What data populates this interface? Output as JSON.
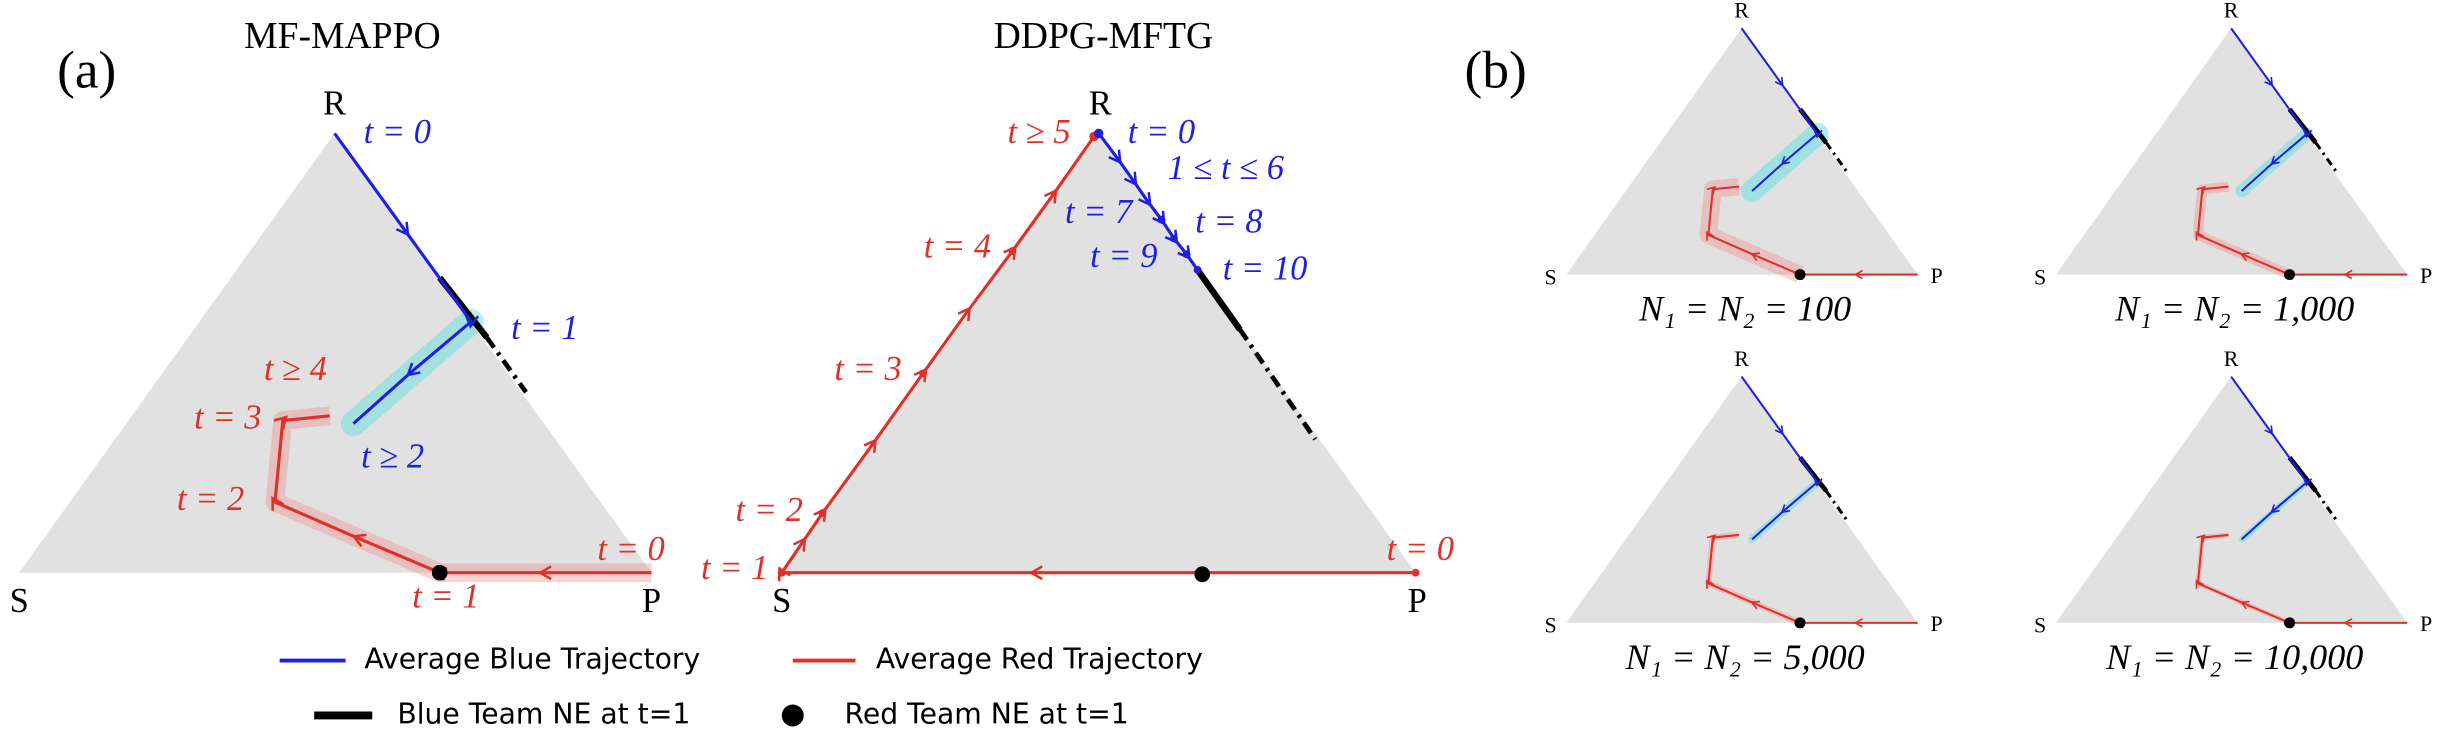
{
  "panel_a": {
    "label": "(a)",
    "plots": [
      {
        "title": "MF-MAPPO",
        "vertices": [
          "R",
          "S",
          "P"
        ],
        "blue_labels": [
          "t = 0",
          "t = 1",
          "t ≥ 2"
        ],
        "red_labels": [
          "t ≥ 4",
          "t = 3",
          "t = 2",
          "t = 1",
          "t = 0"
        ]
      },
      {
        "title": "DDPG-MFTG",
        "vertices": [
          "R",
          "S",
          "P"
        ],
        "blue_labels": [
          "t = 0",
          "1 ≤ t ≤ 6",
          "t = 7",
          "t = 8",
          "t = 9",
          "t = 10"
        ],
        "red_labels": [
          "t ≥ 5",
          "t = 4",
          "t = 3",
          "t = 2",
          "t = 1",
          "t = 0"
        ]
      }
    ],
    "legend": [
      "Average Blue Trajectory",
      "Average Red Trajectory",
      "Blue Team NE at t=1",
      "Red Team NE at t=1"
    ]
  },
  "panel_b": {
    "label": "(b)",
    "plots": [
      {
        "caption": "N₁ = N₂ = 100",
        "vertices": [
          "R",
          "S",
          "P"
        ]
      },
      {
        "caption": "N₁ = N₂ = 1,000",
        "vertices": [
          "R",
          "S",
          "P"
        ]
      },
      {
        "caption": "N₁ = N₂ = 5,000",
        "vertices": [
          "R",
          "S",
          "P"
        ]
      },
      {
        "caption": "N₁ = N₂ = 10,000",
        "vertices": [
          "R",
          "S",
          "P"
        ]
      }
    ]
  }
}
